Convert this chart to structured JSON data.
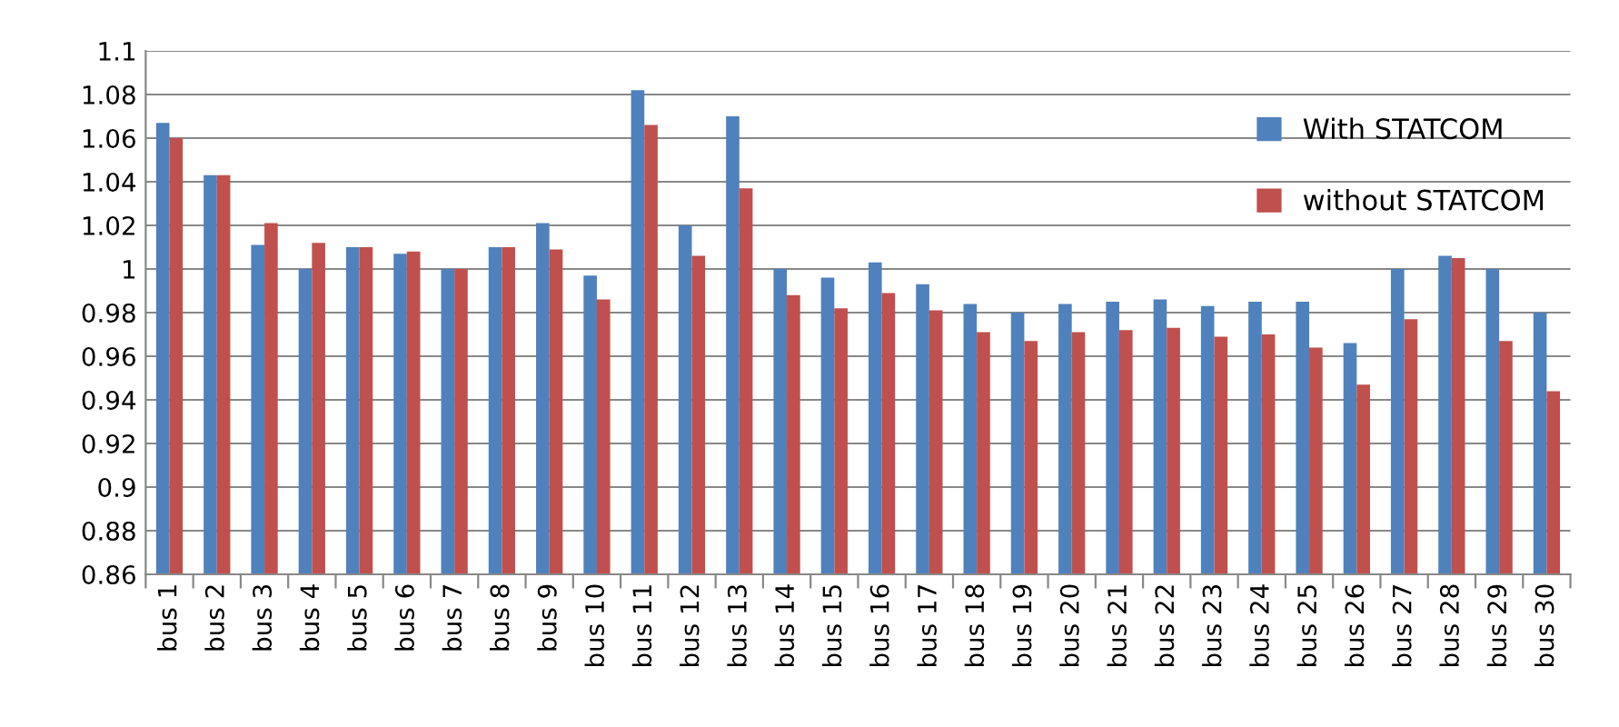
{
  "chart_data": {
    "type": "bar",
    "categories": [
      "bus 1",
      "bus 2",
      "bus 3",
      "bus 4",
      "bus 5",
      "bus 6",
      "bus 7",
      "bus 8",
      "bus 9",
      "bus 10",
      "bus 11",
      "bus 12",
      "bus 13",
      "bus 14",
      "bus 15",
      "bus 16",
      "bus 17",
      "bus 18",
      "bus 19",
      "bus 20",
      "bus 21",
      "bus 22",
      "bus 23",
      "bus 24",
      "bus 25",
      "bus 26",
      "bus 27",
      "bus 28",
      "bus 29",
      "bus 30"
    ],
    "series": [
      {
        "name": "With STATCOM",
        "color": "#4f81bd",
        "values": [
          1.067,
          1.043,
          1.011,
          1.0,
          1.01,
          1.007,
          1.0,
          1.01,
          1.021,
          0.997,
          1.082,
          1.02,
          1.07,
          1.0,
          0.996,
          1.003,
          0.993,
          0.984,
          0.98,
          0.984,
          0.985,
          0.986,
          0.983,
          0.985,
          0.985,
          0.966,
          1.0,
          1.006,
          1.0,
          0.98
        ]
      },
      {
        "name": "without STATCOM",
        "color": "#c0504d",
        "values": [
          1.06,
          1.043,
          1.021,
          1.012,
          1.01,
          1.008,
          1.0,
          1.01,
          1.009,
          0.986,
          1.066,
          1.006,
          1.037,
          0.988,
          0.982,
          0.989,
          0.981,
          0.971,
          0.967,
          0.971,
          0.972,
          0.973,
          0.969,
          0.97,
          0.964,
          0.947,
          0.977,
          1.005,
          0.967,
          0.944
        ]
      }
    ],
    "ylim": [
      0.86,
      1.1
    ],
    "yticks": [
      0.86,
      0.88,
      0.9,
      0.92,
      0.94,
      0.96,
      0.98,
      1,
      1.02,
      1.04,
      1.06,
      1.08,
      1.1
    ],
    "grid": "y",
    "legend": "top right"
  }
}
